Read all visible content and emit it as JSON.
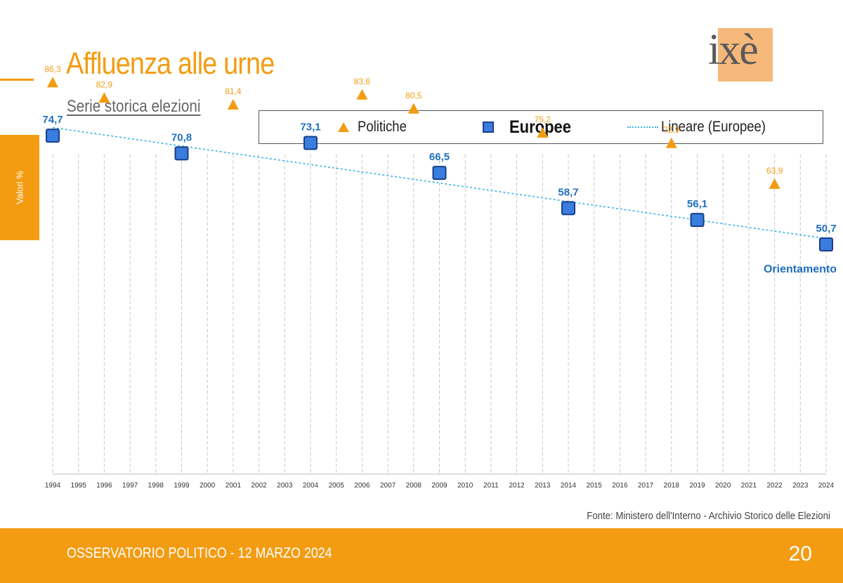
{
  "header": {
    "title": "Affluenza alle urne",
    "subtitle": "Serie storica elezioni",
    "logo_text": "ixè"
  },
  "side_label": "Valori %",
  "legend": {
    "politiche": "Politiche",
    "europee": "Europee",
    "trend": "Lineare (Europee)"
  },
  "chart_data": {
    "type": "scatter",
    "x_ticks": [
      "1994",
      "1995",
      "1996",
      "1997",
      "1998",
      "1999",
      "2000",
      "2001",
      "2002",
      "2003",
      "2004",
      "2005",
      "2006",
      "2007",
      "2008",
      "2009",
      "2010",
      "2011",
      "2012",
      "2013",
      "2014",
      "2015",
      "2016",
      "2017",
      "2018",
      "2019",
      "2020",
      "2021",
      "2022",
      "2023",
      "2024"
    ],
    "ylim": [
      0,
      100
    ],
    "series": [
      {
        "name": "Politiche",
        "marker": "triangle",
        "color": "#f39c12",
        "points": [
          {
            "x": 1994,
            "y": 86.3,
            "label": "86,3"
          },
          {
            "x": 1996,
            "y": 82.9,
            "label": "82,9"
          },
          {
            "x": 2001,
            "y": 81.4,
            "label": "81,4"
          },
          {
            "x": 2006,
            "y": 83.6,
            "label": "83,6"
          },
          {
            "x": 2008,
            "y": 80.5,
            "label": "80,5"
          },
          {
            "x": 2013,
            "y": 75.2,
            "label": "75,2"
          },
          {
            "x": 2018,
            "y": 72.9,
            "label": "72,9"
          },
          {
            "x": 2022,
            "y": 63.9,
            "label": "63,9"
          }
        ]
      },
      {
        "name": "Europee",
        "marker": "square",
        "color": "#3a7ddf",
        "label_color": "#1f6fc0",
        "points": [
          {
            "x": 1994,
            "y": 74.7,
            "label": "74,7"
          },
          {
            "x": 1999,
            "y": 70.8,
            "label": "70,8"
          },
          {
            "x": 2004,
            "y": 73.1,
            "label": "73,1"
          },
          {
            "x": 2009,
            "y": 66.5,
            "label": "66,5"
          },
          {
            "x": 2014,
            "y": 58.7,
            "label": "58,7"
          },
          {
            "x": 2019,
            "y": 56.1,
            "label": "56,1"
          },
          {
            "x": 2024,
            "y": 50.7,
            "label": "50,7"
          }
        ]
      }
    ],
    "trendline": {
      "name": "Lineare (Europee)",
      "from": {
        "x": 1994,
        "y": 76.5
      },
      "to": {
        "x": 2024,
        "y": 52.0
      },
      "color": "#39b4e6"
    },
    "annotation": {
      "text": "Orientamento",
      "x": 2024,
      "color": "#1f6fc0"
    }
  },
  "source": "Fonte: Ministero dell'Interno - Archivio Storico delle Elezioni",
  "footer": {
    "text": "OSSERVATORIO POLITICO - 12 MARZO 2024",
    "page_number": "20"
  }
}
